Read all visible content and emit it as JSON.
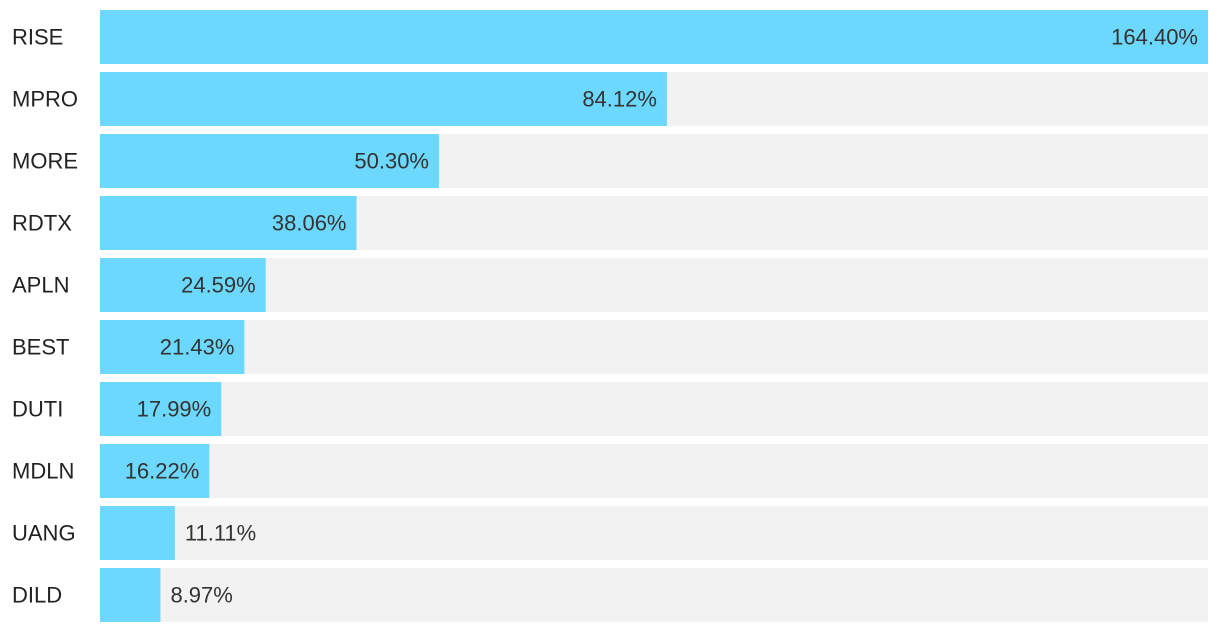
{
  "chart_data": {
    "type": "bar",
    "orientation": "horizontal",
    "categories": [
      "RISE",
      "MPRO",
      "MORE",
      "RDTX",
      "APLN",
      "BEST",
      "DUTI",
      "MDLN",
      "UANG",
      "DILD"
    ],
    "values": [
      164.4,
      84.12,
      50.3,
      38.06,
      24.59,
      21.43,
      17.99,
      16.22,
      11.11,
      8.97
    ],
    "data_labels": [
      "164.40%",
      "84.12%",
      "50.30%",
      "38.06%",
      "24.59%",
      "21.43%",
      "17.99%",
      "16.22%",
      "11.11%",
      "8.97%"
    ],
    "xlim": [
      0,
      164.4
    ],
    "grid": false,
    "legend": "none",
    "title": "",
    "xlabel": "",
    "ylabel": ""
  },
  "colors": {
    "bar": "#6dd8fd",
    "track": "#f2f2f2",
    "label": "#222222",
    "value": "#333333"
  }
}
